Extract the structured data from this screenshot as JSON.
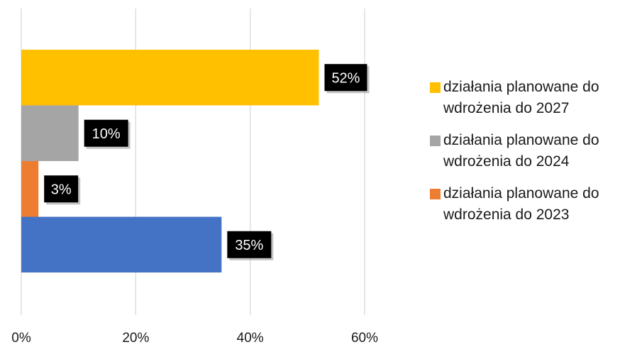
{
  "chart_data": {
    "type": "bar",
    "orientation": "horizontal",
    "xlim": [
      0,
      60
    ],
    "x_ticks": [
      "0%",
      "20%",
      "40%",
      "60%"
    ],
    "grid": true,
    "legend_position": "right",
    "series": [
      {
        "name": "działania planowane do wdrożenia do 2027",
        "value": 52,
        "label": "52%",
        "color": "#FFC000"
      },
      {
        "name": "działania planowane do wdrożenia do 2024",
        "value": 10,
        "label": "10%",
        "color": "#A5A5A5"
      },
      {
        "name": "działania planowane do wdrożenia do 2023",
        "value": 3,
        "label": "3%",
        "color": "#ED7D31"
      },
      {
        "name": "",
        "value": 35,
        "label": "35%",
        "color": "#4472C4"
      }
    ],
    "legend": [
      {
        "label": "działania planowane do wdrożenia do 2027",
        "color": "#FFC000"
      },
      {
        "label": "działania planowane do wdrożenia do 2024",
        "color": "#A5A5A5"
      },
      {
        "label": "działania planowane do wdrożenia do 2023",
        "color": "#ED7D31"
      }
    ]
  }
}
